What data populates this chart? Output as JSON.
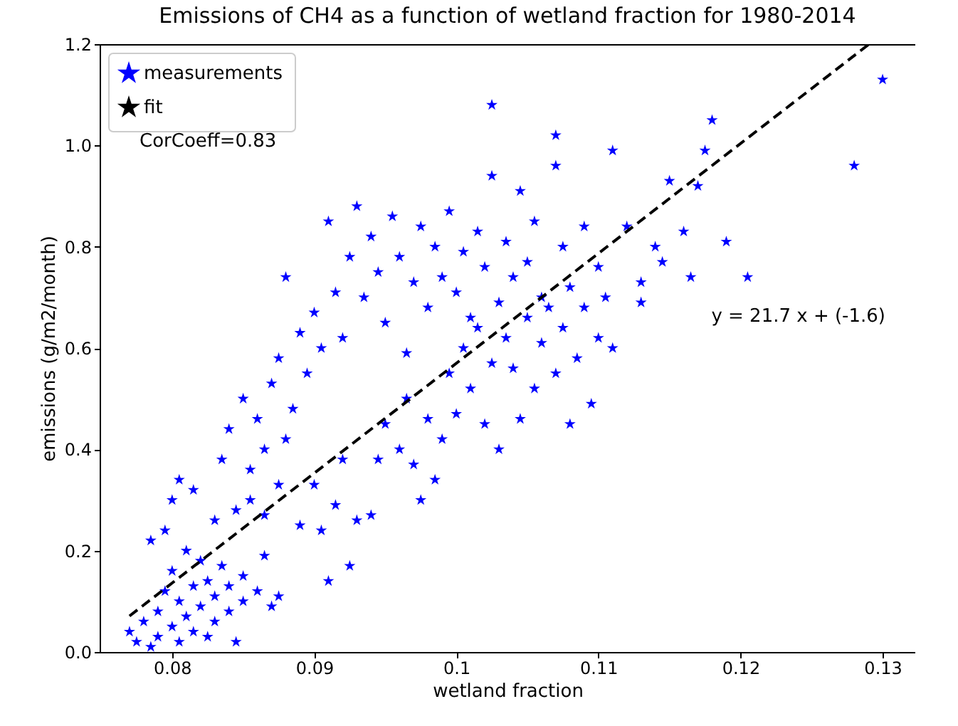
{
  "chart_data": {
    "type": "scatter",
    "title": "Emissions of CH4 as a function of wetland fraction for 1980-2014",
    "xlabel": "wetland fraction",
    "ylabel": "emissions (g/m2/month)",
    "xlim": [
      0.0749,
      0.1323
    ],
    "xticks": [
      0.08,
      0.09,
      0.1,
      0.11,
      0.12,
      0.13
    ],
    "ylim": [
      0,
      1.2
    ],
    "yticks": [
      {
        "value": 0,
        "label": "0.0"
      },
      0.2,
      0.4,
      0.6,
      0.8,
      {
        "value": 1,
        "label": "1.0"
      },
      1.2
    ],
    "legend": "top left",
    "grid": false,
    "annotations": [
      "CorCoeff=0.83",
      "y = 21.7 x + (-1.6)"
    ],
    "series": [
      {
        "name": "measurements",
        "marker": "star",
        "color": "#0000ff",
        "x": [
          0.077,
          0.0775,
          0.078,
          0.0785,
          0.079,
          0.079,
          0.0795,
          0.08,
          0.08,
          0.0805,
          0.0805,
          0.081,
          0.081,
          0.0815,
          0.0815,
          0.082,
          0.082,
          0.0825,
          0.0825,
          0.083,
          0.083,
          0.0835,
          0.084,
          0.084,
          0.0845,
          0.085,
          0.085,
          0.086,
          0.087,
          0.0875,
          0.0865,
          0.0785,
          0.0795,
          0.08,
          0.0805,
          0.0815,
          0.083,
          0.0835,
          0.084,
          0.0845,
          0.085,
          0.0855,
          0.086,
          0.0865,
          0.087,
          0.0875,
          0.088,
          0.0885,
          0.089,
          0.0895,
          0.09,
          0.0905,
          0.091,
          0.0915,
          0.092,
          0.0925,
          0.093,
          0.0935,
          0.094,
          0.0945,
          0.095,
          0.0955,
          0.096,
          0.0965,
          0.097,
          0.0975,
          0.098,
          0.0985,
          0.099,
          0.0995,
          0.1,
          0.1005,
          0.101,
          0.1015,
          0.102,
          0.1025,
          0.1025,
          0.103,
          0.1035,
          0.104,
          0.1045,
          0.105,
          0.1055,
          0.106,
          0.107,
          0.107,
          0.1075,
          0.108,
          0.109,
          0.11,
          0.111,
          0.112,
          0.113,
          0.114,
          0.115,
          0.116,
          0.117,
          0.1175,
          0.118,
          0.119,
          0.1205,
          0.128,
          0.13,
          0.1165,
          0.1145,
          0.113,
          0.111,
          0.089,
          0.09,
          0.0905,
          0.091,
          0.0915,
          0.092,
          0.0925,
          0.093,
          0.094,
          0.0945,
          0.095,
          0.096,
          0.0965,
          0.097,
          0.0975,
          0.098,
          0.0985,
          0.099,
          0.0995,
          0.1,
          0.1005,
          0.101,
          0.1015,
          0.102,
          0.1025,
          0.103,
          0.1035,
          0.104,
          0.1045,
          0.105,
          0.1055,
          0.106,
          0.1065,
          0.107,
          0.1075,
          0.108,
          0.1085,
          0.109,
          0.1095,
          0.11,
          0.1105,
          0.0855,
          0.088,
          0.0865,
          0.0875
        ],
        "values": [
          0.04,
          0.02,
          0.06,
          0.01,
          0.03,
          0.08,
          0.12,
          0.05,
          0.16,
          0.02,
          0.1,
          0.07,
          0.2,
          0.13,
          0.04,
          0.09,
          0.18,
          0.03,
          0.14,
          0.06,
          0.11,
          0.17,
          0.08,
          0.13,
          0.02,
          0.1,
          0.15,
          0.12,
          0.09,
          0.11,
          0.19,
          0.22,
          0.24,
          0.3,
          0.34,
          0.32,
          0.26,
          0.38,
          0.44,
          0.28,
          0.5,
          0.36,
          0.46,
          0.4,
          0.53,
          0.58,
          0.74,
          0.48,
          0.63,
          0.55,
          0.67,
          0.6,
          0.85,
          0.71,
          0.62,
          0.78,
          0.88,
          0.7,
          0.82,
          0.75,
          0.65,
          0.86,
          0.78,
          0.59,
          0.73,
          0.84,
          0.68,
          0.8,
          0.74,
          0.87,
          0.71,
          0.79,
          0.66,
          0.83,
          0.76,
          1.08,
          0.94,
          0.69,
          0.81,
          0.74,
          0.91,
          0.77,
          0.85,
          0.7,
          0.96,
          1.02,
          0.8,
          0.72,
          0.84,
          0.76,
          0.99,
          0.84,
          0.73,
          0.8,
          0.93,
          0.83,
          0.92,
          0.99,
          1.05,
          0.81,
          0.74,
          0.96,
          1.13,
          0.74,
          0.77,
          0.69,
          0.6,
          0.25,
          0.33,
          0.24,
          0.14,
          0.29,
          0.38,
          0.17,
          0.26,
          0.27,
          0.38,
          0.45,
          0.4,
          0.5,
          0.37,
          0.3,
          0.46,
          0.34,
          0.42,
          0.55,
          0.47,
          0.6,
          0.52,
          0.64,
          0.45,
          0.57,
          0.4,
          0.62,
          0.56,
          0.46,
          0.66,
          0.52,
          0.61,
          0.68,
          0.55,
          0.64,
          0.45,
          0.58,
          0.68,
          0.49,
          0.62,
          0.7,
          0.3,
          0.42,
          0.27,
          0.33
        ]
      },
      {
        "name": "fit",
        "type": "line",
        "line_style": "dashed",
        "color": "#000000",
        "x": [
          0.077,
          0.129
        ],
        "values": [
          0.071,
          1.199
        ]
      }
    ]
  }
}
